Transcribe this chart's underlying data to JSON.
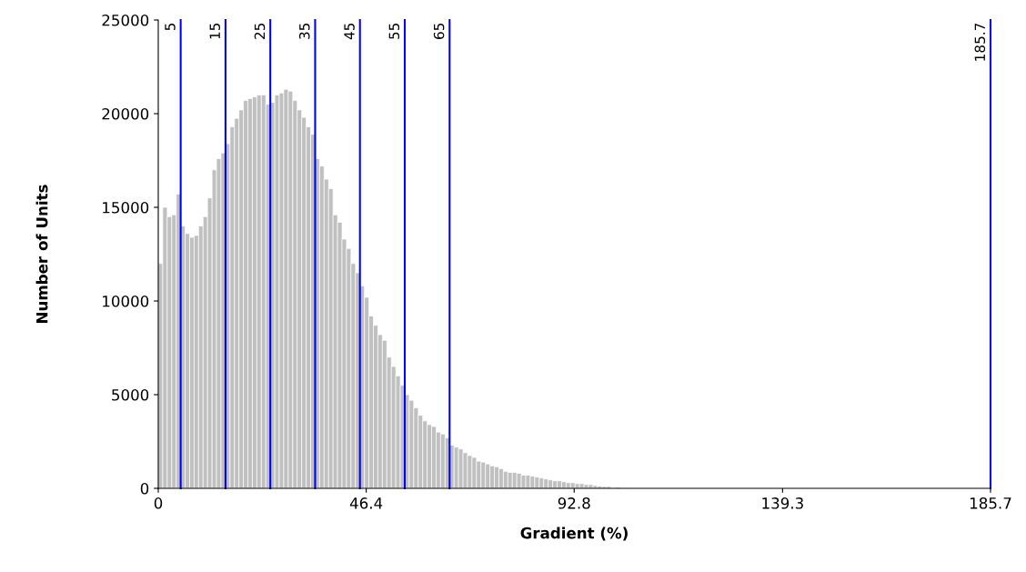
{
  "chart_data": {
    "type": "histogram",
    "xlabel": "Gradient (%)",
    "ylabel": "Number of Units",
    "color": "#c0c0c0",
    "bins": [
      0,
      1,
      2,
      3,
      4,
      5,
      6,
      7,
      8,
      9,
      10,
      11,
      12,
      13,
      14,
      15,
      16,
      17,
      18,
      19,
      20,
      21,
      22,
      23,
      24,
      25,
      26,
      27,
      28,
      29,
      30,
      31,
      32,
      33,
      34,
      35,
      36,
      37,
      38,
      39,
      40,
      41,
      42,
      43,
      44,
      45,
      46,
      47,
      48,
      49,
      50,
      51,
      52,
      53,
      54,
      55,
      56,
      57,
      58,
      59,
      60,
      61,
      62,
      63,
      64,
      65,
      66,
      67,
      68,
      69,
      70,
      71,
      72,
      73,
      74,
      75,
      76,
      77,
      78,
      79,
      80,
      81,
      82,
      83,
      84,
      85,
      86,
      87,
      88,
      89,
      90,
      91,
      92,
      93,
      94,
      95,
      96,
      97,
      98,
      99,
      100,
      101,
      102,
      103,
      104,
      105,
      106,
      107,
      108,
      109
    ],
    "values": [
      12000,
      15000,
      14500,
      14600,
      15700,
      14000,
      13600,
      13400,
      13500,
      14000,
      14500,
      15500,
      17000,
      17600,
      17900,
      18400,
      19300,
      19750,
      20200,
      20700,
      20800,
      20900,
      21000,
      21000,
      20500,
      20600,
      21000,
      21100,
      21300,
      21200,
      20700,
      20200,
      19800,
      19300,
      18900,
      17600,
      17200,
      16500,
      16000,
      14600,
      14200,
      13300,
      12800,
      12000,
      11500,
      10800,
      10200,
      9200,
      8700,
      8200,
      7900,
      7000,
      6500,
      6000,
      5500,
      5000,
      4700,
      4300,
      3900,
      3600,
      3400,
      3300,
      3000,
      2900,
      2700,
      2300,
      2200,
      2100,
      1900,
      1750,
      1650,
      1450,
      1400,
      1300,
      1200,
      1150,
      1050,
      900,
      850,
      850,
      800,
      700,
      700,
      650,
      600,
      550,
      500,
      450,
      400,
      400,
      350,
      300,
      300,
      250,
      250,
      200,
      200,
      150,
      120,
      100,
      100,
      null,
      60,
      null,
      null,
      null,
      null,
      null,
      null
    ],
    "xlim": [
      0,
      185.7
    ],
    "xticks": [
      0,
      46.4,
      92.8,
      139.3,
      185.7
    ],
    "ylim": [
      0,
      25000
    ],
    "yticks": [
      0,
      5000,
      10000,
      15000,
      20000,
      25000
    ],
    "grid": false,
    "ref_lines": [
      {
        "axis": "x",
        "value": 5,
        "label": "5",
        "color": "#0000ff"
      },
      {
        "axis": "x",
        "value": 15,
        "label": "15",
        "color": "#0000ff"
      },
      {
        "axis": "x",
        "value": 25,
        "label": "25",
        "color": "#0000ff"
      },
      {
        "axis": "x",
        "value": 35,
        "label": "35",
        "color": "#0000ff"
      },
      {
        "axis": "x",
        "value": 45,
        "label": "45",
        "color": "#0000ff"
      },
      {
        "axis": "x",
        "value": 55,
        "label": "55",
        "color": "#0000ff"
      },
      {
        "axis": "x",
        "value": 65,
        "label": "65",
        "color": "#0000ff"
      },
      {
        "axis": "x",
        "value": 185.7,
        "label": "185.7",
        "color": "#0000ff"
      }
    ]
  }
}
